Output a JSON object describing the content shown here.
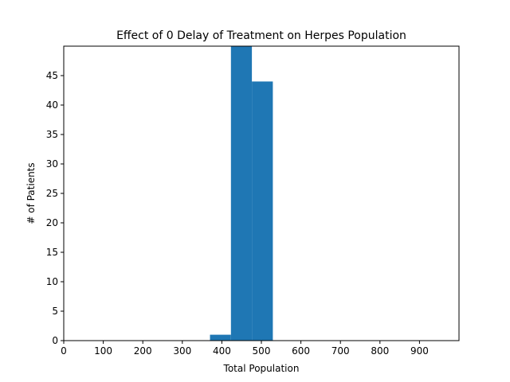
{
  "chart_data": {
    "type": "bar",
    "title": "Effect of 0 Delay of Treatment on Herpes Population",
    "xlabel": "Total Population",
    "ylabel": "# of Patients",
    "xlim": [
      0,
      1000
    ],
    "ylim": [
      0,
      50
    ],
    "x_ticks": [
      0,
      100,
      200,
      300,
      400,
      500,
      600,
      700,
      800,
      900
    ],
    "y_ticks": [
      0,
      5,
      10,
      15,
      20,
      25,
      30,
      35,
      40,
      45
    ],
    "bar_color": "#1f77b4",
    "bins": [
      {
        "start": 370,
        "end": 423,
        "count": 1
      },
      {
        "start": 423,
        "end": 476,
        "count": 50
      },
      {
        "start": 476,
        "end": 529,
        "count": 44
      }
    ]
  }
}
